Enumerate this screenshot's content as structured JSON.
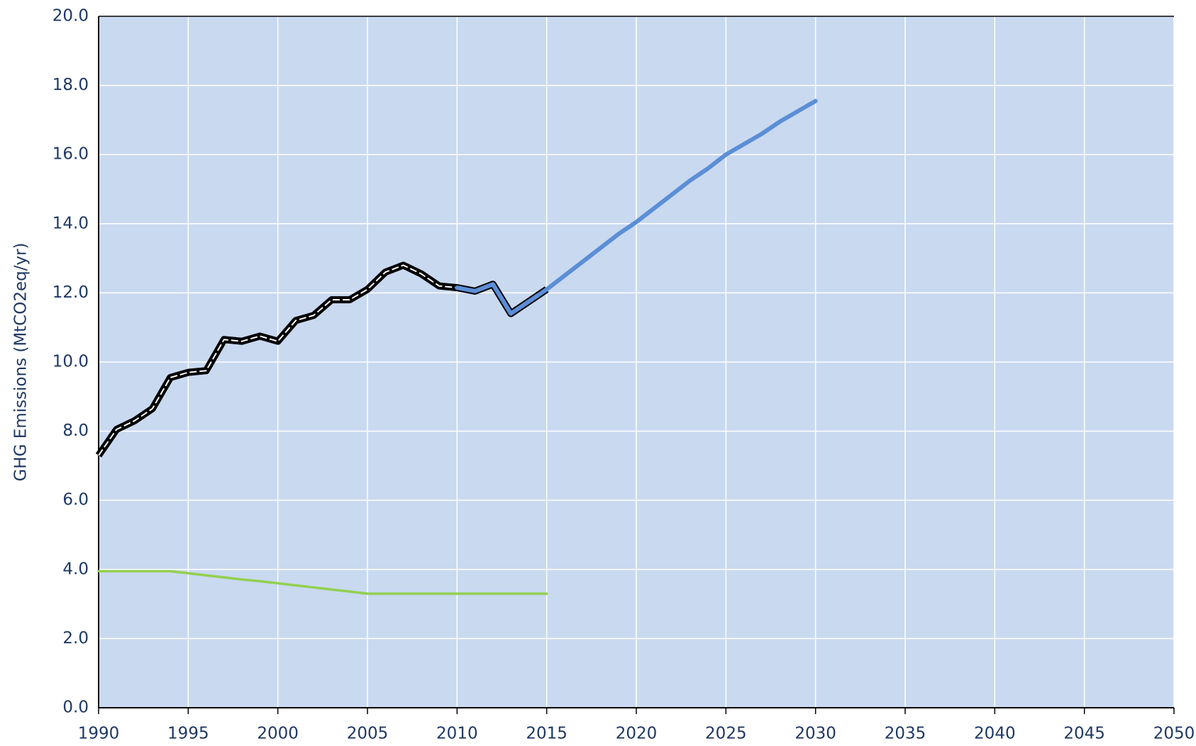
{
  "chart_data": {
    "type": "line",
    "y_label": "GHG Emissions (MtCO2eq/yr)",
    "x": [
      1990,
      1991,
      1992,
      1993,
      1994,
      1995,
      1996,
      1997,
      1998,
      1999,
      2000,
      2001,
      2002,
      2003,
      2004,
      2005,
      2006,
      2007,
      2008,
      2009,
      2010,
      2011,
      2012,
      2013,
      2014,
      2015,
      2016,
      2017,
      2018,
      2019,
      2020,
      2021,
      2022,
      2023,
      2024,
      2025,
      2026,
      2027,
      2028,
      2029,
      2030
    ],
    "series": [
      {
        "color": "#000000",
        "style": "double-dash",
        "values": [
          7.3,
          8.05,
          8.3,
          8.65,
          9.55,
          9.7,
          9.75,
          10.65,
          10.6,
          10.75,
          10.6,
          11.2,
          11.35,
          11.8,
          11.8,
          12.1,
          12.6,
          12.8,
          12.55,
          12.2,
          12.15,
          12.05,
          12.25,
          11.4,
          11.75,
          12.1,
          null,
          null,
          null,
          null,
          null,
          null,
          null,
          null,
          null,
          null,
          null,
          null,
          null,
          null,
          null
        ]
      },
      {
        "color": "#5b8ed6",
        "values": [
          null,
          null,
          null,
          null,
          null,
          null,
          null,
          null,
          null,
          null,
          null,
          null,
          null,
          null,
          null,
          null,
          null,
          null,
          null,
          null,
          12.15,
          12.05,
          12.25,
          11.4,
          11.75,
          12.1,
          12.5,
          12.9,
          13.3,
          13.7,
          14.05,
          14.45,
          14.85,
          15.25,
          15.6,
          16.0,
          16.3,
          16.6,
          16.95,
          17.25,
          17.55
        ]
      },
      {
        "color": "#92d050",
        "values": [
          3.95,
          3.95,
          3.95,
          3.95,
          3.95,
          3.89,
          3.83,
          3.77,
          3.71,
          3.66,
          3.6,
          3.54,
          3.48,
          3.42,
          3.36,
          3.3,
          3.3,
          3.3,
          3.3,
          3.3,
          3.3,
          3.3,
          3.3,
          3.3,
          3.3,
          3.3,
          null,
          null,
          null,
          null,
          null,
          null,
          null,
          null,
          null,
          null,
          null,
          null,
          null,
          null,
          null
        ]
      }
    ],
    "xlim": [
      1990,
      2050
    ],
    "xticks": [
      1990,
      1995,
      2000,
      2005,
      2010,
      2015,
      2020,
      2025,
      2030,
      2035,
      2040,
      2045,
      2050
    ],
    "ylim": [
      0,
      20
    ],
    "yticks": [
      {
        "value": 0,
        "label": "0.0"
      },
      {
        "value": 2,
        "label": "2.0"
      },
      {
        "value": 4,
        "label": "4.0"
      },
      {
        "value": 6,
        "label": "6.0"
      },
      {
        "value": 8,
        "label": "8.0"
      },
      {
        "value": 10,
        "label": "10.0"
      },
      {
        "value": 12,
        "label": "12.0"
      },
      {
        "value": 14,
        "label": "14.0"
      },
      {
        "value": 16,
        "label": "16.0"
      },
      {
        "value": 18,
        "label": "18.0"
      },
      {
        "value": 20,
        "label": "20.0"
      }
    ],
    "grid": true,
    "plot_background": "#c9d9f0"
  }
}
